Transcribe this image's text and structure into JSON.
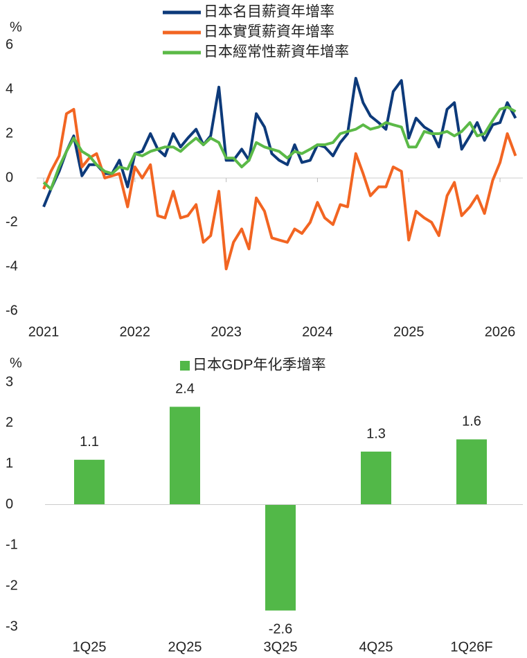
{
  "chart_data": [
    {
      "type": "line",
      "y_label": "%",
      "x": [
        2021.0,
        2021.08,
        2021.17,
        2021.25,
        2021.33,
        2021.42,
        2021.5,
        2021.58,
        2021.67,
        2021.75,
        2021.83,
        2021.92,
        2022.0,
        2022.08,
        2022.17,
        2022.25,
        2022.33,
        2022.42,
        2022.5,
        2022.58,
        2022.67,
        2022.75,
        2022.83,
        2022.92,
        2023.0,
        2023.08,
        2023.17,
        2023.25,
        2023.33,
        2023.42,
        2023.5,
        2023.58,
        2023.67,
        2023.75,
        2023.83,
        2023.92,
        2024.0,
        2024.08,
        2024.17,
        2024.25,
        2024.33,
        2024.42,
        2024.5,
        2024.58,
        2024.67,
        2024.75,
        2024.83,
        2024.92,
        2025.0,
        2025.08,
        2025.17,
        2025.25,
        2025.33,
        2025.42,
        2025.5,
        2025.58,
        2025.67,
        2025.75,
        2025.83,
        2025.92,
        2026.0,
        2026.08,
        2026.17
      ],
      "series": [
        {
          "name": "日本名目薪資年增率",
          "color": "#0d3a7a",
          "values": [
            -1.3,
            -0.5,
            0.3,
            1.2,
            1.9,
            0.1,
            0.6,
            0.6,
            0.2,
            0.2,
            0.8,
            -0.4,
            1.1,
            1.2,
            2.0,
            1.3,
            1.0,
            2.0,
            1.4,
            1.8,
            2.2,
            1.5,
            1.9,
            4.1,
            0.8,
            0.8,
            1.3,
            0.8,
            2.9,
            2.3,
            1.1,
            0.8,
            0.6,
            1.5,
            0.7,
            0.8,
            1.5,
            1.4,
            1.0,
            1.6,
            2.0,
            4.5,
            3.4,
            2.8,
            2.5,
            2.2,
            3.9,
            4.4,
            1.8,
            2.7,
            2.3,
            2.1,
            1.4,
            3.1,
            3.4,
            1.3,
            1.9,
            2.5,
            1.7,
            2.4,
            2.5,
            3.4,
            2.7
          ]
        },
        {
          "name": "日本實質薪資年增率",
          "color": "#f26522",
          "values": [
            -0.5,
            0.3,
            1.0,
            2.9,
            3.1,
            0.5,
            0.9,
            1.1,
            0.0,
            0.1,
            0.2,
            -1.3,
            0.5,
            0.0,
            0.6,
            -1.7,
            -1.8,
            -0.6,
            -1.8,
            -1.7,
            -1.2,
            -2.9,
            -2.6,
            -0.6,
            -4.1,
            -2.9,
            -2.3,
            -3.2,
            -0.9,
            -1.5,
            -2.7,
            -2.8,
            -2.9,
            -2.3,
            -2.5,
            -2.0,
            -1.1,
            -1.8,
            -2.1,
            -1.2,
            -1.3,
            1.1,
            0.2,
            -0.8,
            -0.4,
            -0.4,
            0.5,
            0.3,
            -2.8,
            -1.5,
            -1.8,
            -2.0,
            -2.6,
            -0.8,
            -0.2,
            -1.7,
            -1.3,
            -0.8,
            -1.6,
            -0.1,
            0.7,
            2.0,
            1.0
          ]
        },
        {
          "name": "日本經常性薪資年增率",
          "color": "#5bb947",
          "values": [
            -0.2,
            -0.5,
            0.5,
            1.2,
            1.8,
            1.2,
            1.0,
            0.6,
            0.3,
            0.2,
            0.5,
            0.4,
            1.1,
            1.0,
            1.2,
            1.3,
            1.4,
            1.4,
            1.2,
            1.5,
            1.8,
            1.5,
            1.8,
            1.6,
            0.9,
            0.9,
            0.5,
            0.8,
            1.6,
            1.4,
            1.3,
            1.2,
            0.9,
            1.2,
            1.1,
            1.3,
            1.5,
            1.5,
            1.6,
            2.0,
            2.1,
            2.2,
            2.4,
            2.2,
            2.3,
            2.5,
            2.4,
            2.3,
            1.4,
            1.4,
            2.1,
            2.0,
            2.0,
            2.1,
            1.9,
            2.1,
            2.5,
            1.9,
            2.0,
            2.6,
            3.1,
            3.2,
            3.0
          ]
        }
      ],
      "xlim": [
        2021,
        2026.25
      ],
      "xticks": [
        2021,
        2022,
        2023,
        2024,
        2025,
        2026
      ],
      "ylim": [
        -6,
        6
      ],
      "yticks": [
        -6,
        -4,
        -2,
        0,
        2,
        4,
        6
      ],
      "legend": "top"
    },
    {
      "type": "bar",
      "y_label": "%",
      "categories": [
        "1Q25",
        "2Q25",
        "3Q25",
        "4Q25",
        "1Q26F"
      ],
      "series": [
        {
          "name": "日本GDP年化季增率",
          "color": "#52b848",
          "values": [
            1.1,
            2.4,
            -2.6,
            1.3,
            1.6
          ]
        }
      ],
      "ylim": [
        -3,
        3
      ],
      "yticks": [
        -3,
        -2,
        -1,
        0,
        1,
        2,
        3
      ],
      "legend": "top"
    }
  ]
}
